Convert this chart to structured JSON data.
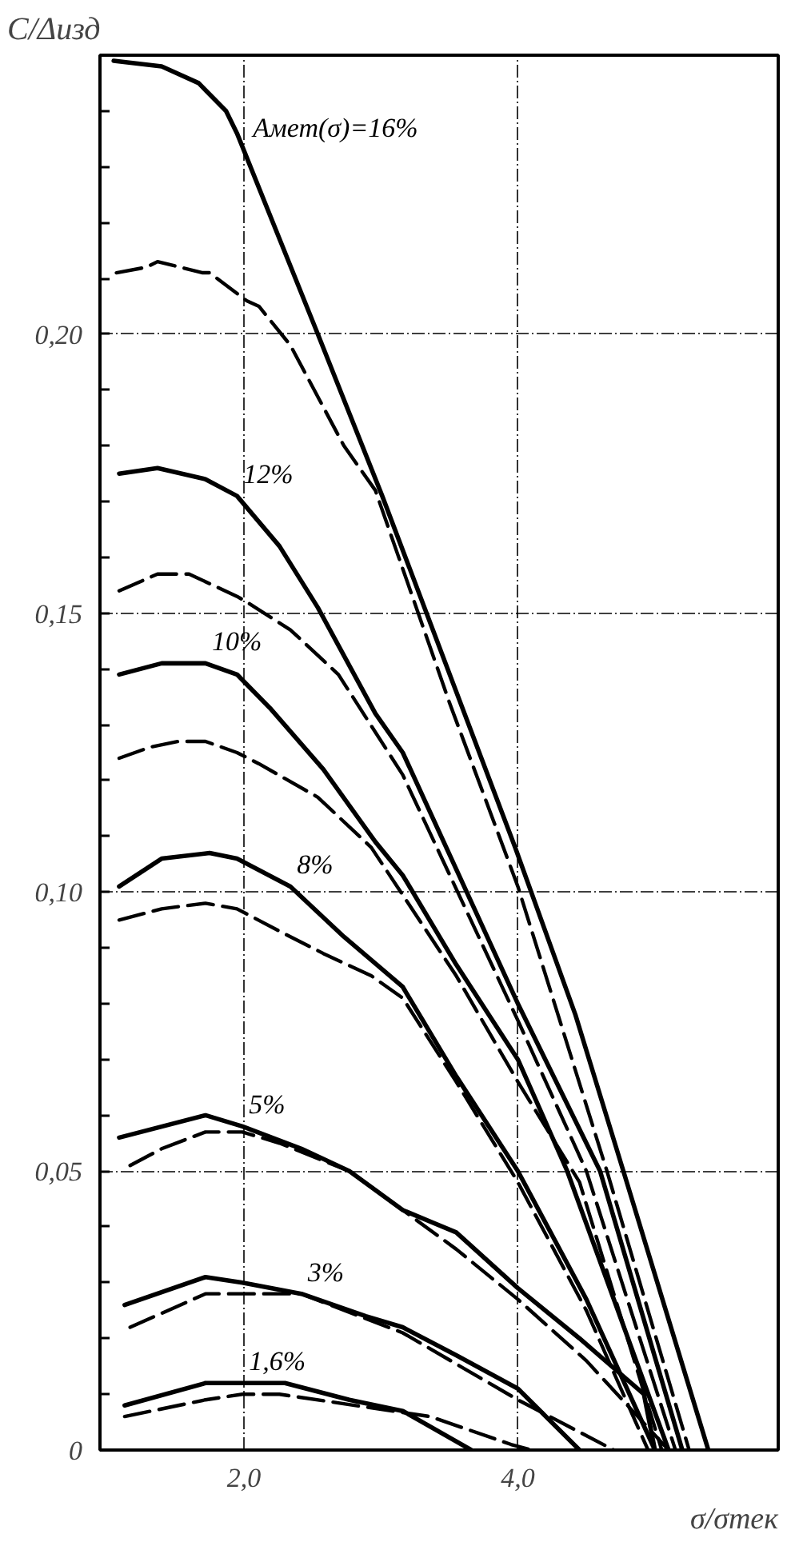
{
  "chart_data": {
    "type": "line",
    "xlabel": "σ/σтек",
    "ylabel": "C/Δизд",
    "xlim": [
      0.95,
      5.9
    ],
    "ylim": [
      0,
      0.25
    ],
    "xticks": [
      {
        "value": 2.0,
        "label": "2,0"
      },
      {
        "value": 4.0,
        "label": "4,0"
      }
    ],
    "yticks": [
      0,
      {
        "value": 0.05,
        "label": "0,05"
      },
      {
        "value": 0.1,
        "label": "0,10"
      },
      {
        "value": 0.15,
        "label": "0,15"
      },
      {
        "value": 0.2,
        "label": "0,20"
      }
    ],
    "grid": true,
    "marker": "none",
    "series": [
      {
        "name": "Aмет(σ)=16%",
        "color": "#000000",
        "line_style": "solid",
        "x": [
          1.05,
          1.4,
          1.67,
          1.87,
          1.95,
          2.54,
          3.01,
          3.98,
          4.42,
          4.77,
          5.39
        ],
        "values": [
          0.249,
          0.248,
          0.245,
          0.24,
          0.236,
          0.2,
          0.171,
          0.108,
          0.078,
          0.05,
          0
        ]
      },
      {
        "color": "#000000",
        "line_style": "dashed",
        "x": [
          1.07,
          1.29,
          1.37,
          1.7,
          1.75,
          2.02,
          2.11,
          2.34,
          2.73,
          2.96,
          3.5,
          4.0,
          4.65,
          5.25
        ],
        "values": [
          0.211,
          0.212,
          0.213,
          0.211,
          0.211,
          0.206,
          0.205,
          0.198,
          0.18,
          0.172,
          0.134,
          0.101,
          0.05,
          0
        ]
      },
      {
        "name": "12%",
        "color": "#000000",
        "line_style": "solid",
        "x": [
          1.09,
          1.37,
          1.72,
          1.95,
          2.26,
          2.54,
          2.96,
          3.16,
          4.0,
          4.6,
          5.2
        ],
        "values": [
          0.175,
          0.176,
          0.174,
          0.171,
          0.162,
          0.151,
          0.132,
          0.125,
          0.08,
          0.05,
          0
        ]
      },
      {
        "color": "#000000",
        "line_style": "dashed",
        "x": [
          1.09,
          1.37,
          1.6,
          1.95,
          2.02,
          2.34,
          2.69,
          3.16,
          4.0,
          4.5,
          5.15
        ],
        "values": [
          0.154,
          0.157,
          0.157,
          0.153,
          0.152,
          0.147,
          0.139,
          0.121,
          0.077,
          0.05,
          0
        ]
      },
      {
        "name": "10%",
        "color": "#000000",
        "line_style": "solid",
        "x": [
          1.09,
          1.4,
          1.72,
          1.95,
          2.19,
          2.58,
          2.96,
          3.16,
          3.55,
          4.0,
          4.36,
          5.1
        ],
        "values": [
          0.139,
          0.141,
          0.141,
          0.139,
          0.133,
          0.122,
          0.109,
          0.103,
          0.087,
          0.07,
          0.05,
          0
        ]
      },
      {
        "color": "#000000",
        "line_style": "dashed",
        "x": [
          1.09,
          1.32,
          1.52,
          1.72,
          1.95,
          2.11,
          2.54,
          2.93,
          3.55,
          4.0,
          4.45,
          5.05
        ],
        "values": [
          0.124,
          0.126,
          0.127,
          0.127,
          0.125,
          0.123,
          0.117,
          0.108,
          0.085,
          0.066,
          0.048,
          0
        ]
      },
      {
        "name": "8%",
        "color": "#000000",
        "line_style": "solid",
        "x": [
          1.09,
          1.4,
          1.75,
          1.95,
          2.34,
          2.73,
          3.16,
          3.55,
          4.0,
          4.5,
          5.0
        ],
        "values": [
          0.101,
          0.106,
          0.107,
          0.106,
          0.101,
          0.092,
          0.083,
          0.067,
          0.05,
          0.027,
          0
        ]
      },
      {
        "color": "#000000",
        "line_style": "dashed",
        "x": [
          1.09,
          1.4,
          1.72,
          1.95,
          2.26,
          2.58,
          2.93,
          3.16,
          3.55,
          4.0,
          4.5,
          4.95
        ],
        "values": [
          0.095,
          0.097,
          0.098,
          0.097,
          0.093,
          0.089,
          0.085,
          0.081,
          0.066,
          0.048,
          0.025,
          0
        ]
      },
      {
        "name": "5%",
        "color": "#000000",
        "line_style": "solid",
        "x": [
          1.09,
          1.72,
          1.99,
          2.42,
          2.77,
          3.16,
          3.55,
          4.0,
          4.45,
          4.92,
          5.0
        ],
        "values": [
          0.056,
          0.06,
          0.058,
          0.054,
          0.05,
          0.043,
          0.039,
          0.029,
          0.02,
          0.01,
          0
        ]
      },
      {
        "color": "#000000",
        "line_style": "dashed",
        "x": [
          1.17,
          1.4,
          1.72,
          1.99,
          2.26,
          2.77,
          3.55,
          4.0,
          4.5,
          5.1
        ],
        "values": [
          0.051,
          0.054,
          0.057,
          0.057,
          0.055,
          0.05,
          0.036,
          0.027,
          0.016,
          0
        ]
      },
      {
        "name": "3%",
        "color": "#000000",
        "line_style": "solid",
        "x": [
          1.13,
          1.72,
          1.99,
          2.42,
          2.89,
          3.16,
          3.55,
          4.0,
          4.45
        ],
        "values": [
          0.026,
          0.031,
          0.03,
          0.028,
          0.024,
          0.022,
          0.017,
          0.011,
          0
        ]
      },
      {
        "color": "#000000",
        "line_style": "dashed",
        "x": [
          1.17,
          1.72,
          1.99,
          2.42,
          3.16,
          4.0,
          4.7
        ],
        "values": [
          0.022,
          0.028,
          0.028,
          0.028,
          0.021,
          0.009,
          0
        ]
      },
      {
        "name": "1,6%",
        "color": "#000000",
        "line_style": "solid",
        "x": [
          1.13,
          1.72,
          1.99,
          2.3,
          2.77,
          3.16,
          3.66
        ],
        "values": [
          0.008,
          0.012,
          0.012,
          0.012,
          0.009,
          0.007,
          0
        ]
      },
      {
        "color": "#000000",
        "line_style": "dashed",
        "x": [
          1.13,
          1.72,
          1.99,
          2.26,
          3.36,
          3.95,
          4.1
        ],
        "values": [
          0.006,
          0.009,
          0.01,
          0.01,
          0.006,
          0.001,
          0
        ]
      }
    ]
  }
}
